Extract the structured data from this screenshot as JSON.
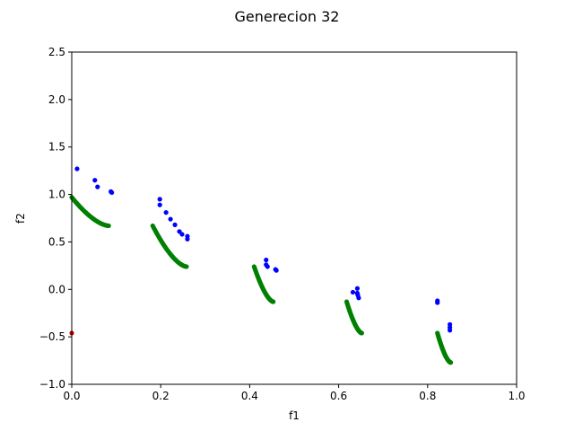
{
  "chart_data": {
    "type": "scatter",
    "title": "Generecion 32",
    "xlabel": "f1",
    "ylabel": "f2",
    "xlim": [
      0.0,
      1.0
    ],
    "ylim": [
      -1.0,
      2.5
    ],
    "xticks": [
      0.0,
      0.2,
      0.4,
      0.6,
      0.8,
      1.0
    ],
    "xtick_labels": [
      "0.0",
      "0.2",
      "0.4",
      "0.6",
      "0.8",
      "1.0"
    ],
    "yticks": [
      -1.0,
      -0.5,
      0.0,
      0.5,
      1.0,
      1.5,
      2.0,
      2.5
    ],
    "ytick_labels": [
      "−1.0",
      "−0.5",
      "0.0",
      "0.5",
      "1.0",
      "1.5",
      "2.0",
      "2.5"
    ],
    "grid": false,
    "series": [
      {
        "color": "#0000ff",
        "points": [
          [
            0.012,
            1.27
          ],
          [
            0.052,
            1.15
          ],
          [
            0.058,
            1.08
          ],
          [
            0.088,
            1.03
          ],
          [
            0.09,
            1.02
          ],
          [
            0.198,
            0.95
          ],
          [
            0.198,
            0.89
          ],
          [
            0.212,
            0.81
          ],
          [
            0.222,
            0.74
          ],
          [
            0.232,
            0.68
          ],
          [
            0.242,
            0.61
          ],
          [
            0.248,
            0.58
          ],
          [
            0.26,
            0.56
          ],
          [
            0.26,
            0.53
          ],
          [
            0.437,
            0.31
          ],
          [
            0.437,
            0.26
          ],
          [
            0.44,
            0.24
          ],
          [
            0.458,
            0.21
          ],
          [
            0.46,
            0.2
          ],
          [
            0.632,
            -0.03
          ],
          [
            0.642,
            0.01
          ],
          [
            0.642,
            -0.04
          ],
          [
            0.643,
            -0.06
          ],
          [
            0.645,
            -0.09
          ],
          [
            0.822,
            -0.12
          ],
          [
            0.822,
            -0.14
          ],
          [
            0.85,
            -0.37
          ],
          [
            0.85,
            -0.4
          ],
          [
            0.85,
            -0.43
          ]
        ]
      },
      {
        "color": "#008000",
        "segments": [
          {
            "x0": 0.0,
            "x1": 0.083,
            "y0": 0.97,
            "y1": 0.67
          },
          {
            "x0": 0.182,
            "x1": 0.258,
            "y0": 0.67,
            "y1": 0.24
          },
          {
            "x0": 0.41,
            "x1": 0.453,
            "y0": 0.24,
            "y1": -0.13
          },
          {
            "x0": 0.618,
            "x1": 0.652,
            "y0": -0.13,
            "y1": -0.46
          },
          {
            "x0": 0.822,
            "x1": 0.852,
            "y0": -0.46,
            "y1": -0.77
          }
        ]
      },
      {
        "color": "#cc0000",
        "points": [
          [
            0.0,
            -0.46
          ]
        ]
      }
    ]
  }
}
